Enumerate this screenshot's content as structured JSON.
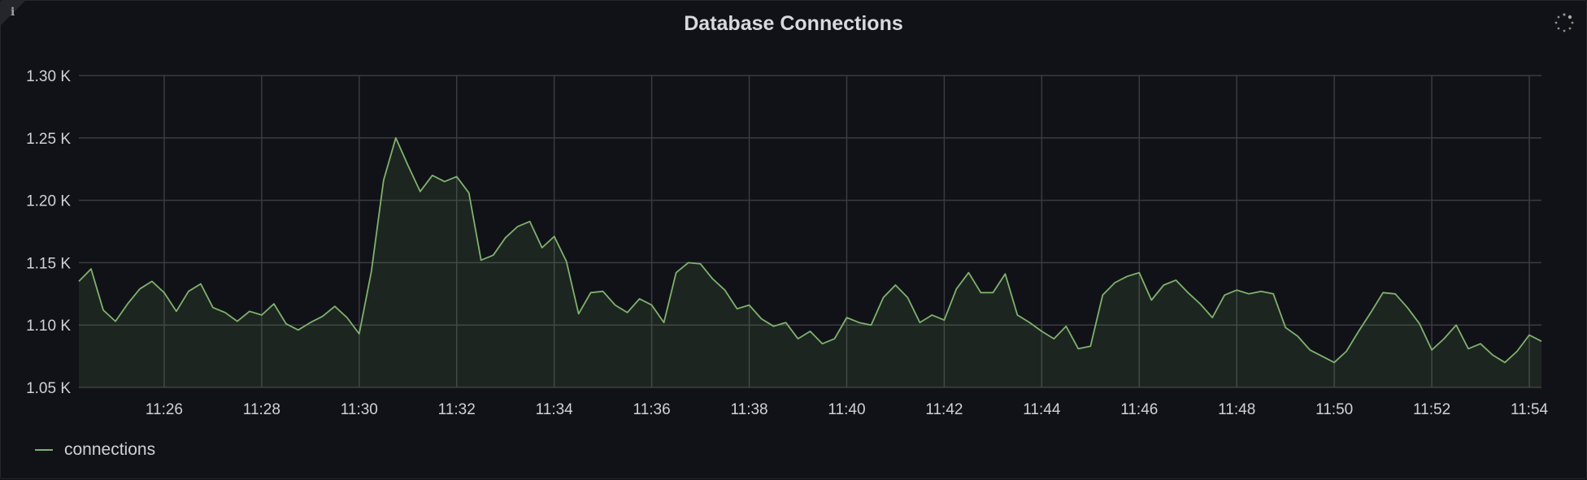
{
  "panel": {
    "title": "Database Connections",
    "info_icon": "info-icon",
    "loading_icon": "spinner-icon"
  },
  "legend": {
    "items": [
      {
        "label": "connections",
        "color": "#7eb26d"
      }
    ]
  },
  "chart_data": {
    "type": "area",
    "title": "Database Connections",
    "xlabel": "",
    "ylabel": "",
    "ylim": [
      1050,
      1300
    ],
    "yticks": [
      {
        "value": 1050,
        "label": "1.05 K"
      },
      {
        "value": 1100,
        "label": "1.10 K"
      },
      {
        "value": 1150,
        "label": "1.15 K"
      },
      {
        "value": 1200,
        "label": "1.20 K"
      },
      {
        "value": 1250,
        "label": "1.25 K"
      },
      {
        "value": 1300,
        "label": "1.30 K"
      }
    ],
    "xlim": [
      "11:24:15",
      "11:54:15"
    ],
    "xticks": [
      "11:26",
      "11:28",
      "11:30",
      "11:32",
      "11:34",
      "11:36",
      "11:38",
      "11:40",
      "11:42",
      "11:44",
      "11:46",
      "11:48",
      "11:50",
      "11:52",
      "11:54"
    ],
    "grid": true,
    "legend_position": "bottom-left",
    "series": [
      {
        "name": "connections",
        "color": "#7eb26d",
        "x": [
          "11:24:15",
          "11:24:30",
          "11:24:45",
          "11:25:00",
          "11:25:15",
          "11:25:30",
          "11:25:45",
          "11:26:00",
          "11:26:15",
          "11:26:30",
          "11:26:45",
          "11:27:00",
          "11:27:15",
          "11:27:30",
          "11:27:45",
          "11:28:00",
          "11:28:15",
          "11:28:30",
          "11:28:45",
          "11:29:00",
          "11:29:15",
          "11:29:30",
          "11:29:45",
          "11:30:00",
          "11:30:15",
          "11:30:30",
          "11:30:45",
          "11:31:00",
          "11:31:15",
          "11:31:30",
          "11:31:45",
          "11:32:00",
          "11:32:15",
          "11:32:30",
          "11:32:45",
          "11:33:00",
          "11:33:15",
          "11:33:30",
          "11:33:45",
          "11:34:00",
          "11:34:15",
          "11:34:30",
          "11:34:45",
          "11:35:00",
          "11:35:15",
          "11:35:30",
          "11:35:45",
          "11:36:00",
          "11:36:15",
          "11:36:30",
          "11:36:45",
          "11:37:00",
          "11:37:15",
          "11:37:30",
          "11:37:45",
          "11:38:00",
          "11:38:15",
          "11:38:30",
          "11:38:45",
          "11:39:00",
          "11:39:15",
          "11:39:30",
          "11:39:45",
          "11:40:00",
          "11:40:15",
          "11:40:30",
          "11:40:45",
          "11:41:00",
          "11:41:15",
          "11:41:30",
          "11:41:45",
          "11:42:00",
          "11:42:15",
          "11:42:30",
          "11:42:45",
          "11:43:00",
          "11:43:15",
          "11:43:30",
          "11:43:45",
          "11:44:00",
          "11:44:15",
          "11:44:30",
          "11:44:45",
          "11:45:00",
          "11:45:15",
          "11:45:30",
          "11:45:45",
          "11:46:00",
          "11:46:15",
          "11:46:30",
          "11:46:45",
          "11:47:00",
          "11:47:15",
          "11:47:30",
          "11:47:45",
          "11:48:00",
          "11:48:15",
          "11:48:30",
          "11:48:45",
          "11:49:00",
          "11:49:15",
          "11:49:30",
          "11:49:45",
          "11:50:00",
          "11:50:15",
          "11:50:30",
          "11:50:45",
          "11:51:00",
          "11:51:15",
          "11:51:30",
          "11:51:45",
          "11:52:00",
          "11:52:15",
          "11:52:30",
          "11:52:45",
          "11:53:00",
          "11:53:15",
          "11:53:30",
          "11:53:45",
          "11:54:00",
          "11:54:15"
        ],
        "values": [
          1135,
          1145,
          1112,
          1103,
          1117,
          1129,
          1135,
          1126,
          1111,
          1127,
          1133,
          1114,
          1110,
          1103,
          1111,
          1108,
          1117,
          1101,
          1096,
          1102,
          1107,
          1115,
          1106,
          1093,
          1143,
          1216,
          1250,
          1228,
          1207,
          1220,
          1215,
          1219,
          1206,
          1152,
          1156,
          1170,
          1179,
          1183,
          1162,
          1171,
          1151,
          1109,
          1126,
          1127,
          1116,
          1110,
          1121,
          1116,
          1102,
          1142,
          1150,
          1149,
          1137,
          1128,
          1113,
          1116,
          1105,
          1099,
          1102,
          1089,
          1095,
          1085,
          1089,
          1106,
          1102,
          1100,
          1122,
          1132,
          1122,
          1102,
          1108,
          1104,
          1129,
          1142,
          1126,
          1126,
          1141,
          1108,
          1102,
          1095,
          1089,
          1099,
          1081,
          1083,
          1124,
          1134,
          1139,
          1142,
          1120,
          1132,
          1136,
          1126,
          1117,
          1106,
          1124,
          1128,
          1125,
          1127,
          1125,
          1098,
          1091,
          1080,
          1075,
          1070,
          1079,
          1095,
          1110,
          1126,
          1125,
          1114,
          1101,
          1080,
          1089,
          1100,
          1081,
          1085,
          1076,
          1070,
          1079,
          1092,
          1087
        ]
      }
    ]
  }
}
